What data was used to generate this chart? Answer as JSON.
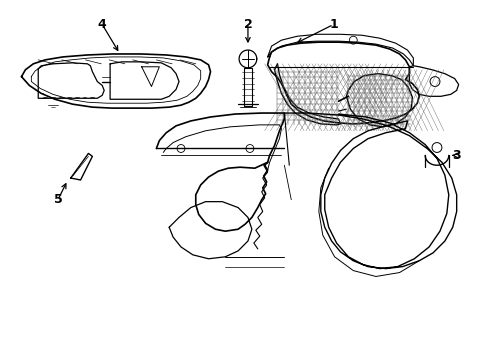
{
  "background_color": "#ffffff",
  "line_color": "#000000",
  "line_width": 0.8,
  "label_color": "#000000",
  "figsize": [
    4.89,
    3.6
  ],
  "dpi": 100
}
